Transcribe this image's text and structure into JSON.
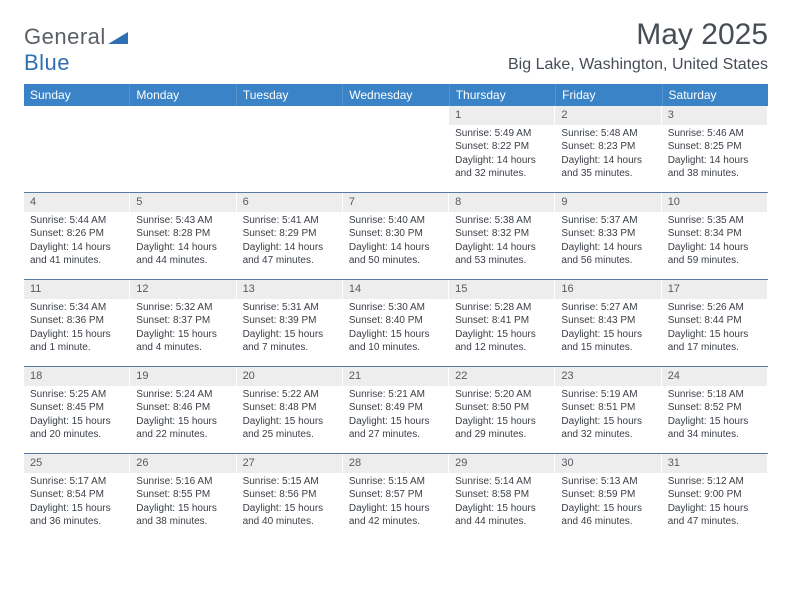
{
  "logo": {
    "general": "General",
    "blue": "Blue"
  },
  "header": {
    "month_title": "May 2025",
    "location": "Big Lake, Washington, United States"
  },
  "colors": {
    "header_bg": "#3a83c6",
    "header_fg": "#ffffff",
    "daynum_bg": "#ededed",
    "week_divider": "#5b7aa3",
    "body_text": "#3a3f46"
  },
  "day_names": [
    "Sunday",
    "Monday",
    "Tuesday",
    "Wednesday",
    "Thursday",
    "Friday",
    "Saturday"
  ],
  "weeks": [
    [
      null,
      null,
      null,
      null,
      {
        "n": "1",
        "sr": "Sunrise: 5:49 AM",
        "ss": "Sunset: 8:22 PM",
        "dl": "Daylight: 14 hours and 32 minutes."
      },
      {
        "n": "2",
        "sr": "Sunrise: 5:48 AM",
        "ss": "Sunset: 8:23 PM",
        "dl": "Daylight: 14 hours and 35 minutes."
      },
      {
        "n": "3",
        "sr": "Sunrise: 5:46 AM",
        "ss": "Sunset: 8:25 PM",
        "dl": "Daylight: 14 hours and 38 minutes."
      }
    ],
    [
      {
        "n": "4",
        "sr": "Sunrise: 5:44 AM",
        "ss": "Sunset: 8:26 PM",
        "dl": "Daylight: 14 hours and 41 minutes."
      },
      {
        "n": "5",
        "sr": "Sunrise: 5:43 AM",
        "ss": "Sunset: 8:28 PM",
        "dl": "Daylight: 14 hours and 44 minutes."
      },
      {
        "n": "6",
        "sr": "Sunrise: 5:41 AM",
        "ss": "Sunset: 8:29 PM",
        "dl": "Daylight: 14 hours and 47 minutes."
      },
      {
        "n": "7",
        "sr": "Sunrise: 5:40 AM",
        "ss": "Sunset: 8:30 PM",
        "dl": "Daylight: 14 hours and 50 minutes."
      },
      {
        "n": "8",
        "sr": "Sunrise: 5:38 AM",
        "ss": "Sunset: 8:32 PM",
        "dl": "Daylight: 14 hours and 53 minutes."
      },
      {
        "n": "9",
        "sr": "Sunrise: 5:37 AM",
        "ss": "Sunset: 8:33 PM",
        "dl": "Daylight: 14 hours and 56 minutes."
      },
      {
        "n": "10",
        "sr": "Sunrise: 5:35 AM",
        "ss": "Sunset: 8:34 PM",
        "dl": "Daylight: 14 hours and 59 minutes."
      }
    ],
    [
      {
        "n": "11",
        "sr": "Sunrise: 5:34 AM",
        "ss": "Sunset: 8:36 PM",
        "dl": "Daylight: 15 hours and 1 minute."
      },
      {
        "n": "12",
        "sr": "Sunrise: 5:32 AM",
        "ss": "Sunset: 8:37 PM",
        "dl": "Daylight: 15 hours and 4 minutes."
      },
      {
        "n": "13",
        "sr": "Sunrise: 5:31 AM",
        "ss": "Sunset: 8:39 PM",
        "dl": "Daylight: 15 hours and 7 minutes."
      },
      {
        "n": "14",
        "sr": "Sunrise: 5:30 AM",
        "ss": "Sunset: 8:40 PM",
        "dl": "Daylight: 15 hours and 10 minutes."
      },
      {
        "n": "15",
        "sr": "Sunrise: 5:28 AM",
        "ss": "Sunset: 8:41 PM",
        "dl": "Daylight: 15 hours and 12 minutes."
      },
      {
        "n": "16",
        "sr": "Sunrise: 5:27 AM",
        "ss": "Sunset: 8:43 PM",
        "dl": "Daylight: 15 hours and 15 minutes."
      },
      {
        "n": "17",
        "sr": "Sunrise: 5:26 AM",
        "ss": "Sunset: 8:44 PM",
        "dl": "Daylight: 15 hours and 17 minutes."
      }
    ],
    [
      {
        "n": "18",
        "sr": "Sunrise: 5:25 AM",
        "ss": "Sunset: 8:45 PM",
        "dl": "Daylight: 15 hours and 20 minutes."
      },
      {
        "n": "19",
        "sr": "Sunrise: 5:24 AM",
        "ss": "Sunset: 8:46 PM",
        "dl": "Daylight: 15 hours and 22 minutes."
      },
      {
        "n": "20",
        "sr": "Sunrise: 5:22 AM",
        "ss": "Sunset: 8:48 PM",
        "dl": "Daylight: 15 hours and 25 minutes."
      },
      {
        "n": "21",
        "sr": "Sunrise: 5:21 AM",
        "ss": "Sunset: 8:49 PM",
        "dl": "Daylight: 15 hours and 27 minutes."
      },
      {
        "n": "22",
        "sr": "Sunrise: 5:20 AM",
        "ss": "Sunset: 8:50 PM",
        "dl": "Daylight: 15 hours and 29 minutes."
      },
      {
        "n": "23",
        "sr": "Sunrise: 5:19 AM",
        "ss": "Sunset: 8:51 PM",
        "dl": "Daylight: 15 hours and 32 minutes."
      },
      {
        "n": "24",
        "sr": "Sunrise: 5:18 AM",
        "ss": "Sunset: 8:52 PM",
        "dl": "Daylight: 15 hours and 34 minutes."
      }
    ],
    [
      {
        "n": "25",
        "sr": "Sunrise: 5:17 AM",
        "ss": "Sunset: 8:54 PM",
        "dl": "Daylight: 15 hours and 36 minutes."
      },
      {
        "n": "26",
        "sr": "Sunrise: 5:16 AM",
        "ss": "Sunset: 8:55 PM",
        "dl": "Daylight: 15 hours and 38 minutes."
      },
      {
        "n": "27",
        "sr": "Sunrise: 5:15 AM",
        "ss": "Sunset: 8:56 PM",
        "dl": "Daylight: 15 hours and 40 minutes."
      },
      {
        "n": "28",
        "sr": "Sunrise: 5:15 AM",
        "ss": "Sunset: 8:57 PM",
        "dl": "Daylight: 15 hours and 42 minutes."
      },
      {
        "n": "29",
        "sr": "Sunrise: 5:14 AM",
        "ss": "Sunset: 8:58 PM",
        "dl": "Daylight: 15 hours and 44 minutes."
      },
      {
        "n": "30",
        "sr": "Sunrise: 5:13 AM",
        "ss": "Sunset: 8:59 PM",
        "dl": "Daylight: 15 hours and 46 minutes."
      },
      {
        "n": "31",
        "sr": "Sunrise: 5:12 AM",
        "ss": "Sunset: 9:00 PM",
        "dl": "Daylight: 15 hours and 47 minutes."
      }
    ]
  ]
}
